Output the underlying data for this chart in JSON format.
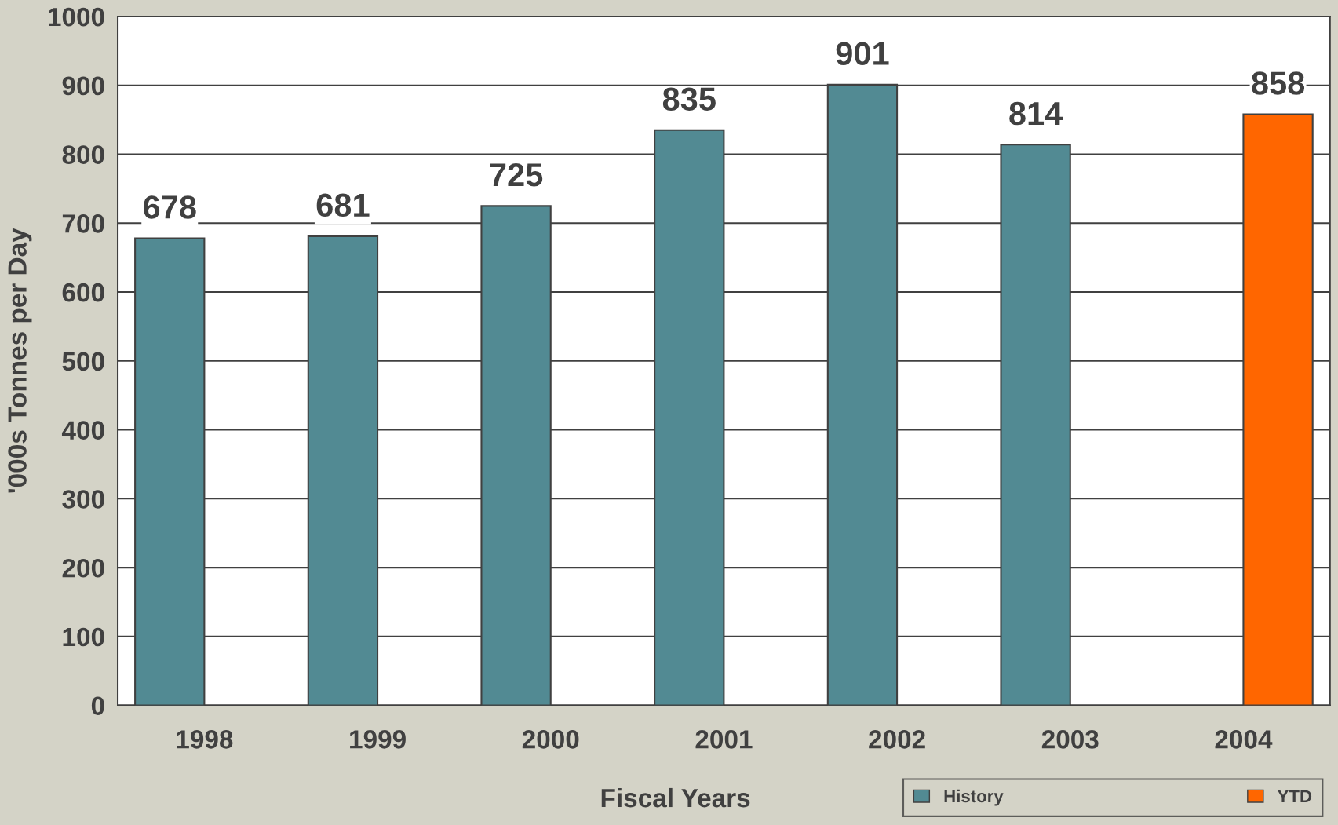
{
  "chart_data": {
    "type": "bar",
    "xlabel": "Fiscal Years",
    "ylabel": "'000s Tonnes per Day",
    "categories": [
      "1998",
      "1999",
      "2000",
      "2001",
      "2002",
      "2003",
      "2004"
    ],
    "series": [
      {
        "name": "History",
        "color": "#528a93",
        "values": [
          678,
          681,
          725,
          835,
          901,
          814,
          null
        ]
      },
      {
        "name": "YTD",
        "color": "#ff6600",
        "values": [
          null,
          null,
          null,
          null,
          null,
          null,
          858
        ]
      }
    ],
    "ylim": [
      0,
      1000
    ],
    "yticks": [
      0,
      100,
      200,
      300,
      400,
      500,
      600,
      700,
      800,
      900,
      1000
    ],
    "grid": "y",
    "legend": "bottom right",
    "data_labels": true
  }
}
